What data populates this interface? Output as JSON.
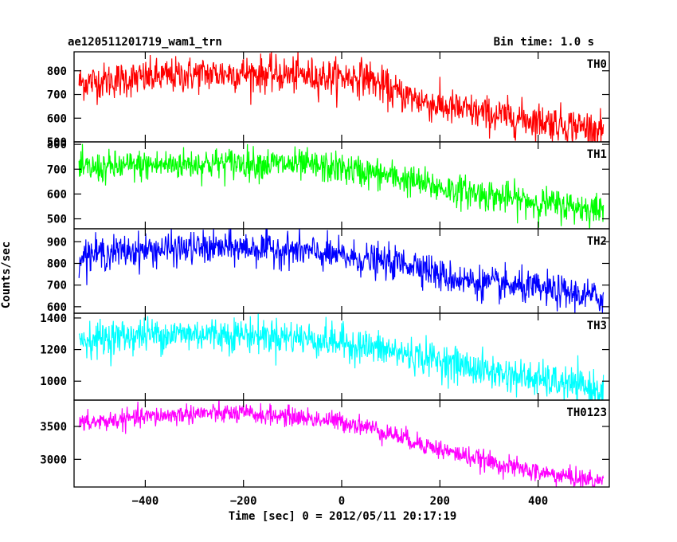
{
  "header": {
    "title": "ae120511201719_wam1_trn",
    "bin_time": "Bin time: 1.0 s"
  },
  "chart_data": {
    "type": "line",
    "xlabel": "Time [sec] 0 = 2012/05/11 20:17:19",
    "ylabel": "Counts/sec",
    "xlim": [
      -545,
      545
    ],
    "x_ticks": [
      -400,
      -200,
      0,
      200,
      400
    ],
    "x_range": [
      -535,
      533
    ],
    "grid": false,
    "panels": [
      {
        "name": "TH0",
        "color": "#ff0000",
        "ylim": [
          500,
          880
        ],
        "y_ticks": [
          500,
          600,
          700,
          800
        ],
        "trend": {
          "x": [
            -535,
            -400,
            -300,
            -200,
            -100,
            0,
            50,
            100,
            200,
            300,
            400,
            533
          ],
          "y": [
            750,
            770,
            785,
            790,
            782,
            772,
            775,
            715,
            650,
            615,
            590,
            550
          ]
        },
        "noise": 38
      },
      {
        "name": "TH1",
        "color": "#00ff00",
        "ylim": [
          460,
          810
        ],
        "y_ticks": [
          500,
          600,
          700,
          800
        ],
        "trend": {
          "x": [
            -535,
            -400,
            -300,
            -200,
            -100,
            0,
            100,
            200,
            300,
            400,
            533
          ],
          "y": [
            700,
            715,
            722,
            725,
            718,
            702,
            672,
            625,
            595,
            565,
            535
          ]
        },
        "noise": 32
      },
      {
        "name": "TH2",
        "color": "#0000ff",
        "ylim": [
          570,
          960
        ],
        "y_ticks": [
          600,
          700,
          800,
          900
        ],
        "trend": {
          "x": [
            -535,
            -400,
            -300,
            -200,
            -100,
            0,
            100,
            160,
            200,
            300,
            400,
            533
          ],
          "y": [
            840,
            862,
            870,
            872,
            862,
            832,
            802,
            795,
            742,
            705,
            682,
            640
          ]
        },
        "noise": 38
      },
      {
        "name": "TH3",
        "color": "#00ffff",
        "ylim": [
          880,
          1430
        ],
        "y_ticks": [
          1000,
          1200,
          1400
        ],
        "trend": {
          "x": [
            -535,
            -400,
            -300,
            -200,
            -100,
            0,
            100,
            200,
            300,
            400,
            533
          ],
          "y": [
            1260,
            1295,
            1300,
            1295,
            1280,
            1245,
            1190,
            1130,
            1060,
            1010,
            940
          ]
        },
        "noise": 55
      },
      {
        "name": "TH0123",
        "color": "#ff00ff",
        "ylim": [
          2580,
          3900
        ],
        "y_ticks": [
          3000,
          3500
        ],
        "trend": {
          "x": [
            -535,
            -400,
            -300,
            -200,
            -100,
            0,
            40,
            100,
            200,
            300,
            400,
            533
          ],
          "y": [
            3540,
            3640,
            3700,
            3690,
            3650,
            3570,
            3520,
            3390,
            3150,
            2960,
            2800,
            2660
          ]
        },
        "noise": 75
      }
    ]
  }
}
